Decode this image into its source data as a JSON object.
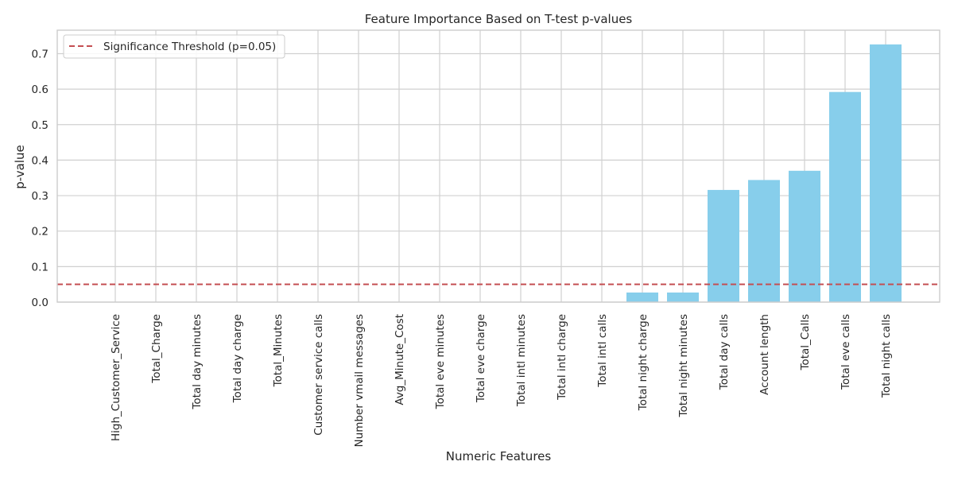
{
  "chart_data": {
    "type": "bar",
    "title": "Feature Importance Based on T-test p-values",
    "xlabel": "Numeric Features",
    "ylabel": "p-value",
    "ylim": [
      0,
      0.766
    ],
    "yticks": [
      "0.0",
      "0.1",
      "0.2",
      "0.3",
      "0.4",
      "0.5",
      "0.6",
      "0.7"
    ],
    "grid": true,
    "legend_position": "top-left",
    "bar_color": "#87ceeb",
    "categories": [
      "High_Customer_Service",
      "Total_Charge",
      "Total day minutes",
      "Total day charge",
      "Total_Minutes",
      "Customer service calls",
      "Number vmail messages",
      "Avg_Minute_Cost",
      "Total eve minutes",
      "Total eve charge",
      "Total intl minutes",
      "Total intl charge",
      "Total intl calls",
      "Total night charge",
      "Total night minutes",
      "Total day calls",
      "Account length",
      "Total_Calls",
      "Total eve calls",
      "Total night calls"
    ],
    "values": [
      0.0,
      0.0,
      0.0,
      0.0,
      0.0,
      0.0,
      0.0,
      0.0,
      0.0,
      0.0,
      0.0,
      0.0,
      0.0,
      0.027,
      0.027,
      0.316,
      0.344,
      0.37,
      0.592,
      0.726
    ],
    "threshold": {
      "value": 0.05,
      "label": "Significance Threshold (p=0.05)",
      "color": "#c44e52"
    }
  }
}
